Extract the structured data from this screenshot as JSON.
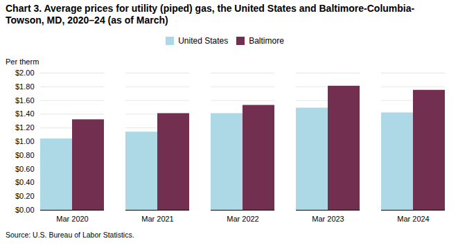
{
  "chart_data": {
    "type": "bar",
    "title": "Chart 3. Average prices for utility (piped) gas, the United States and Baltimore-Columbia-Towson, MD, 2020–24 (as of March)",
    "ylabel": "Per therm",
    "source": "Source: U.S. Bureau of Labor Statistics.",
    "categories": [
      "Mar 2020",
      "Mar 2021",
      "Mar 2022",
      "Mar 2023",
      "Mar 2024"
    ],
    "series": [
      {
        "name": "United States",
        "color": "#ADD8E6",
        "values": [
          1.04,
          1.14,
          1.41,
          1.49,
          1.42
        ]
      },
      {
        "name": "Baltimore",
        "color": "#722F4F",
        "values": [
          1.32,
          1.41,
          1.53,
          1.81,
          1.75
        ]
      }
    ],
    "ylim": [
      0,
      2.0
    ],
    "yticks": [
      {
        "value": 0.0,
        "label": "$0.00"
      },
      {
        "value": 0.2,
        "label": "$0.20"
      },
      {
        "value": 0.4,
        "label": "$0.40"
      },
      {
        "value": 0.6,
        "label": "$0.60"
      },
      {
        "value": 0.8,
        "label": "$0.80"
      },
      {
        "value": 1.0,
        "label": "$1.00"
      },
      {
        "value": 1.2,
        "label": "$1.20"
      },
      {
        "value": 1.4,
        "label": "$1.40"
      },
      {
        "value": 1.6,
        "label": "$1.60"
      },
      {
        "value": 1.8,
        "label": "$1.80"
      },
      {
        "value": 2.0,
        "label": "$2.00"
      }
    ],
    "grid": true,
    "legend": "top"
  }
}
